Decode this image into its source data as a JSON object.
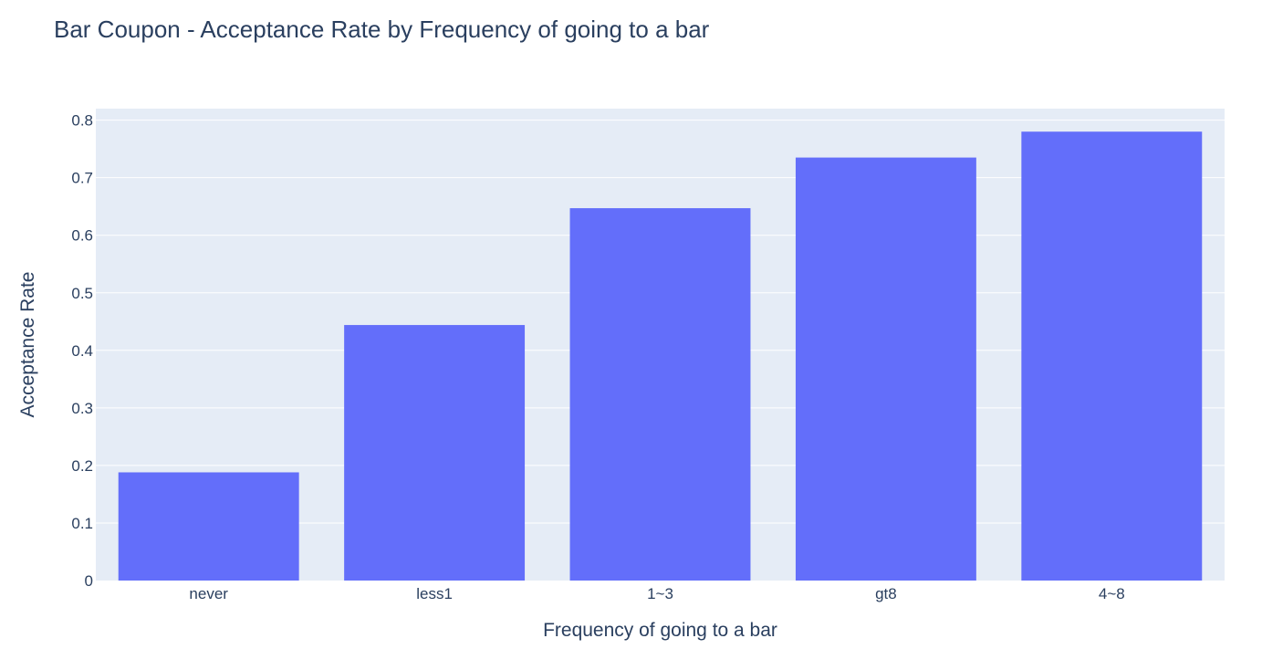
{
  "chart_data": {
    "type": "bar",
    "title": "Bar Coupon - Acceptance Rate by Frequency of going to a bar",
    "xlabel": "Frequency of going to a bar",
    "ylabel": "Acceptance Rate",
    "categories": [
      "never",
      "less1",
      "1~3",
      "gt8",
      "4~8"
    ],
    "values": [
      0.188,
      0.444,
      0.647,
      0.735,
      0.78
    ],
    "ylim": [
      0,
      0.82
    ],
    "yticks": [
      0,
      0.1,
      0.2,
      0.3,
      0.4,
      0.5,
      0.6,
      0.7,
      0.8
    ],
    "ytick_labels": [
      "0",
      "0.1",
      "0.2",
      "0.3",
      "0.4",
      "0.5",
      "0.6",
      "0.7",
      "0.8"
    ],
    "grid": true,
    "colors": {
      "bar": "#636efa",
      "plot_bg": "#e5ecf6",
      "grid": "#ffffff",
      "text": "#2a3f5f"
    }
  }
}
